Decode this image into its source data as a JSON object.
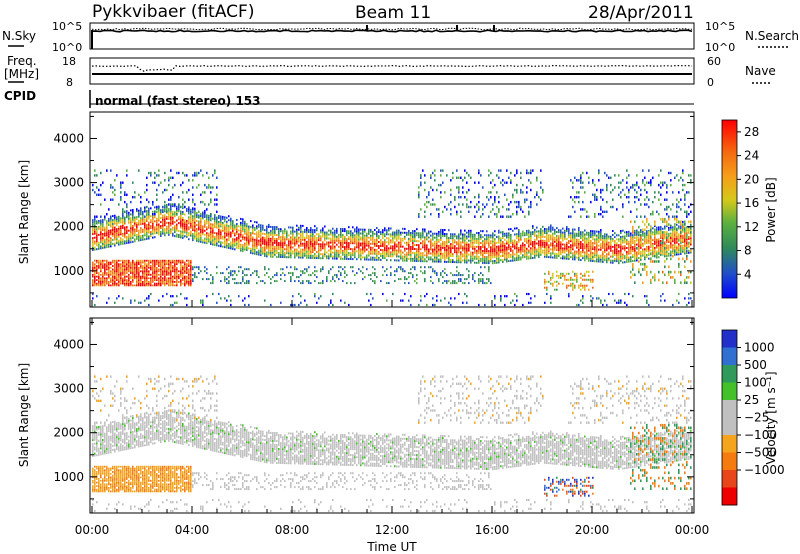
{
  "header": {
    "station": "Pykkvibaer (fitACF)",
    "beam": "Beam 11",
    "date": "28/Apr/2011"
  },
  "labels": {
    "nsky": "N.Sky",
    "nsearch": "N.Search",
    "freq_line1": "Freq.",
    "freq_line2": "[MHz]",
    "nave": "Nave",
    "cpid": "CPID",
    "cpid_value": "normal (fast stereo) 153",
    "time_axis": "Time UT",
    "range_axis": "Slant Range [km]"
  },
  "chart_data": [
    {
      "type": "line",
      "name": "noise",
      "left_axis_ticks": [
        "10^5",
        "10^0"
      ],
      "right_axis_ticks": [
        "10^5",
        "10^0"
      ],
      "xlim": [
        0,
        24
      ]
    },
    {
      "type": "line",
      "name": "frequency-nave",
      "left_axis_ticks": [
        "18",
        "8"
      ],
      "right_axis_ticks": [
        "60",
        "0"
      ],
      "ylim_left": [
        8,
        18
      ],
      "ylim_right": [
        0,
        60
      ],
      "xlim": [
        0,
        24
      ]
    },
    {
      "type": "heatmap",
      "name": "power",
      "ylabel": "Slant Range [km]",
      "ylim": [
        180,
        4600
      ],
      "y_ticks": [
        1000,
        2000,
        3000,
        4000
      ],
      "xlim": [
        0,
        24
      ],
      "colorbar_label": "Power [dB]",
      "colorbar_ticks": [
        "28",
        "24",
        "20",
        "16",
        "12",
        "8",
        "4"
      ],
      "colorbar_range": [
        0,
        30
      ]
    },
    {
      "type": "heatmap",
      "name": "velocity",
      "ylabel": "Slant Range [km]",
      "xlabel": "Time UT",
      "ylim": [
        180,
        4600
      ],
      "y_ticks": [
        1000,
        2000,
        3000,
        4000
      ],
      "xlim": [
        0,
        24
      ],
      "x_ticks": [
        "00:00",
        "04:00",
        "08:00",
        "12:00",
        "16:00",
        "20:00",
        "00:00"
      ],
      "colorbar_label": "Velocity [m s⁻¹]",
      "colorbar_ticks": [
        "1000",
        "500",
        "100",
        "25",
        "−25",
        "−100",
        "−500",
        "−1000"
      ],
      "colorbar_colors": [
        "#2030c8",
        "#3070d0",
        "#2f9a5c",
        "#44c02a",
        "#c0c0c0",
        "#c0c0c0",
        "#f5a41e",
        "#f57a10",
        "#e8451a",
        "#ee0000"
      ]
    }
  ]
}
